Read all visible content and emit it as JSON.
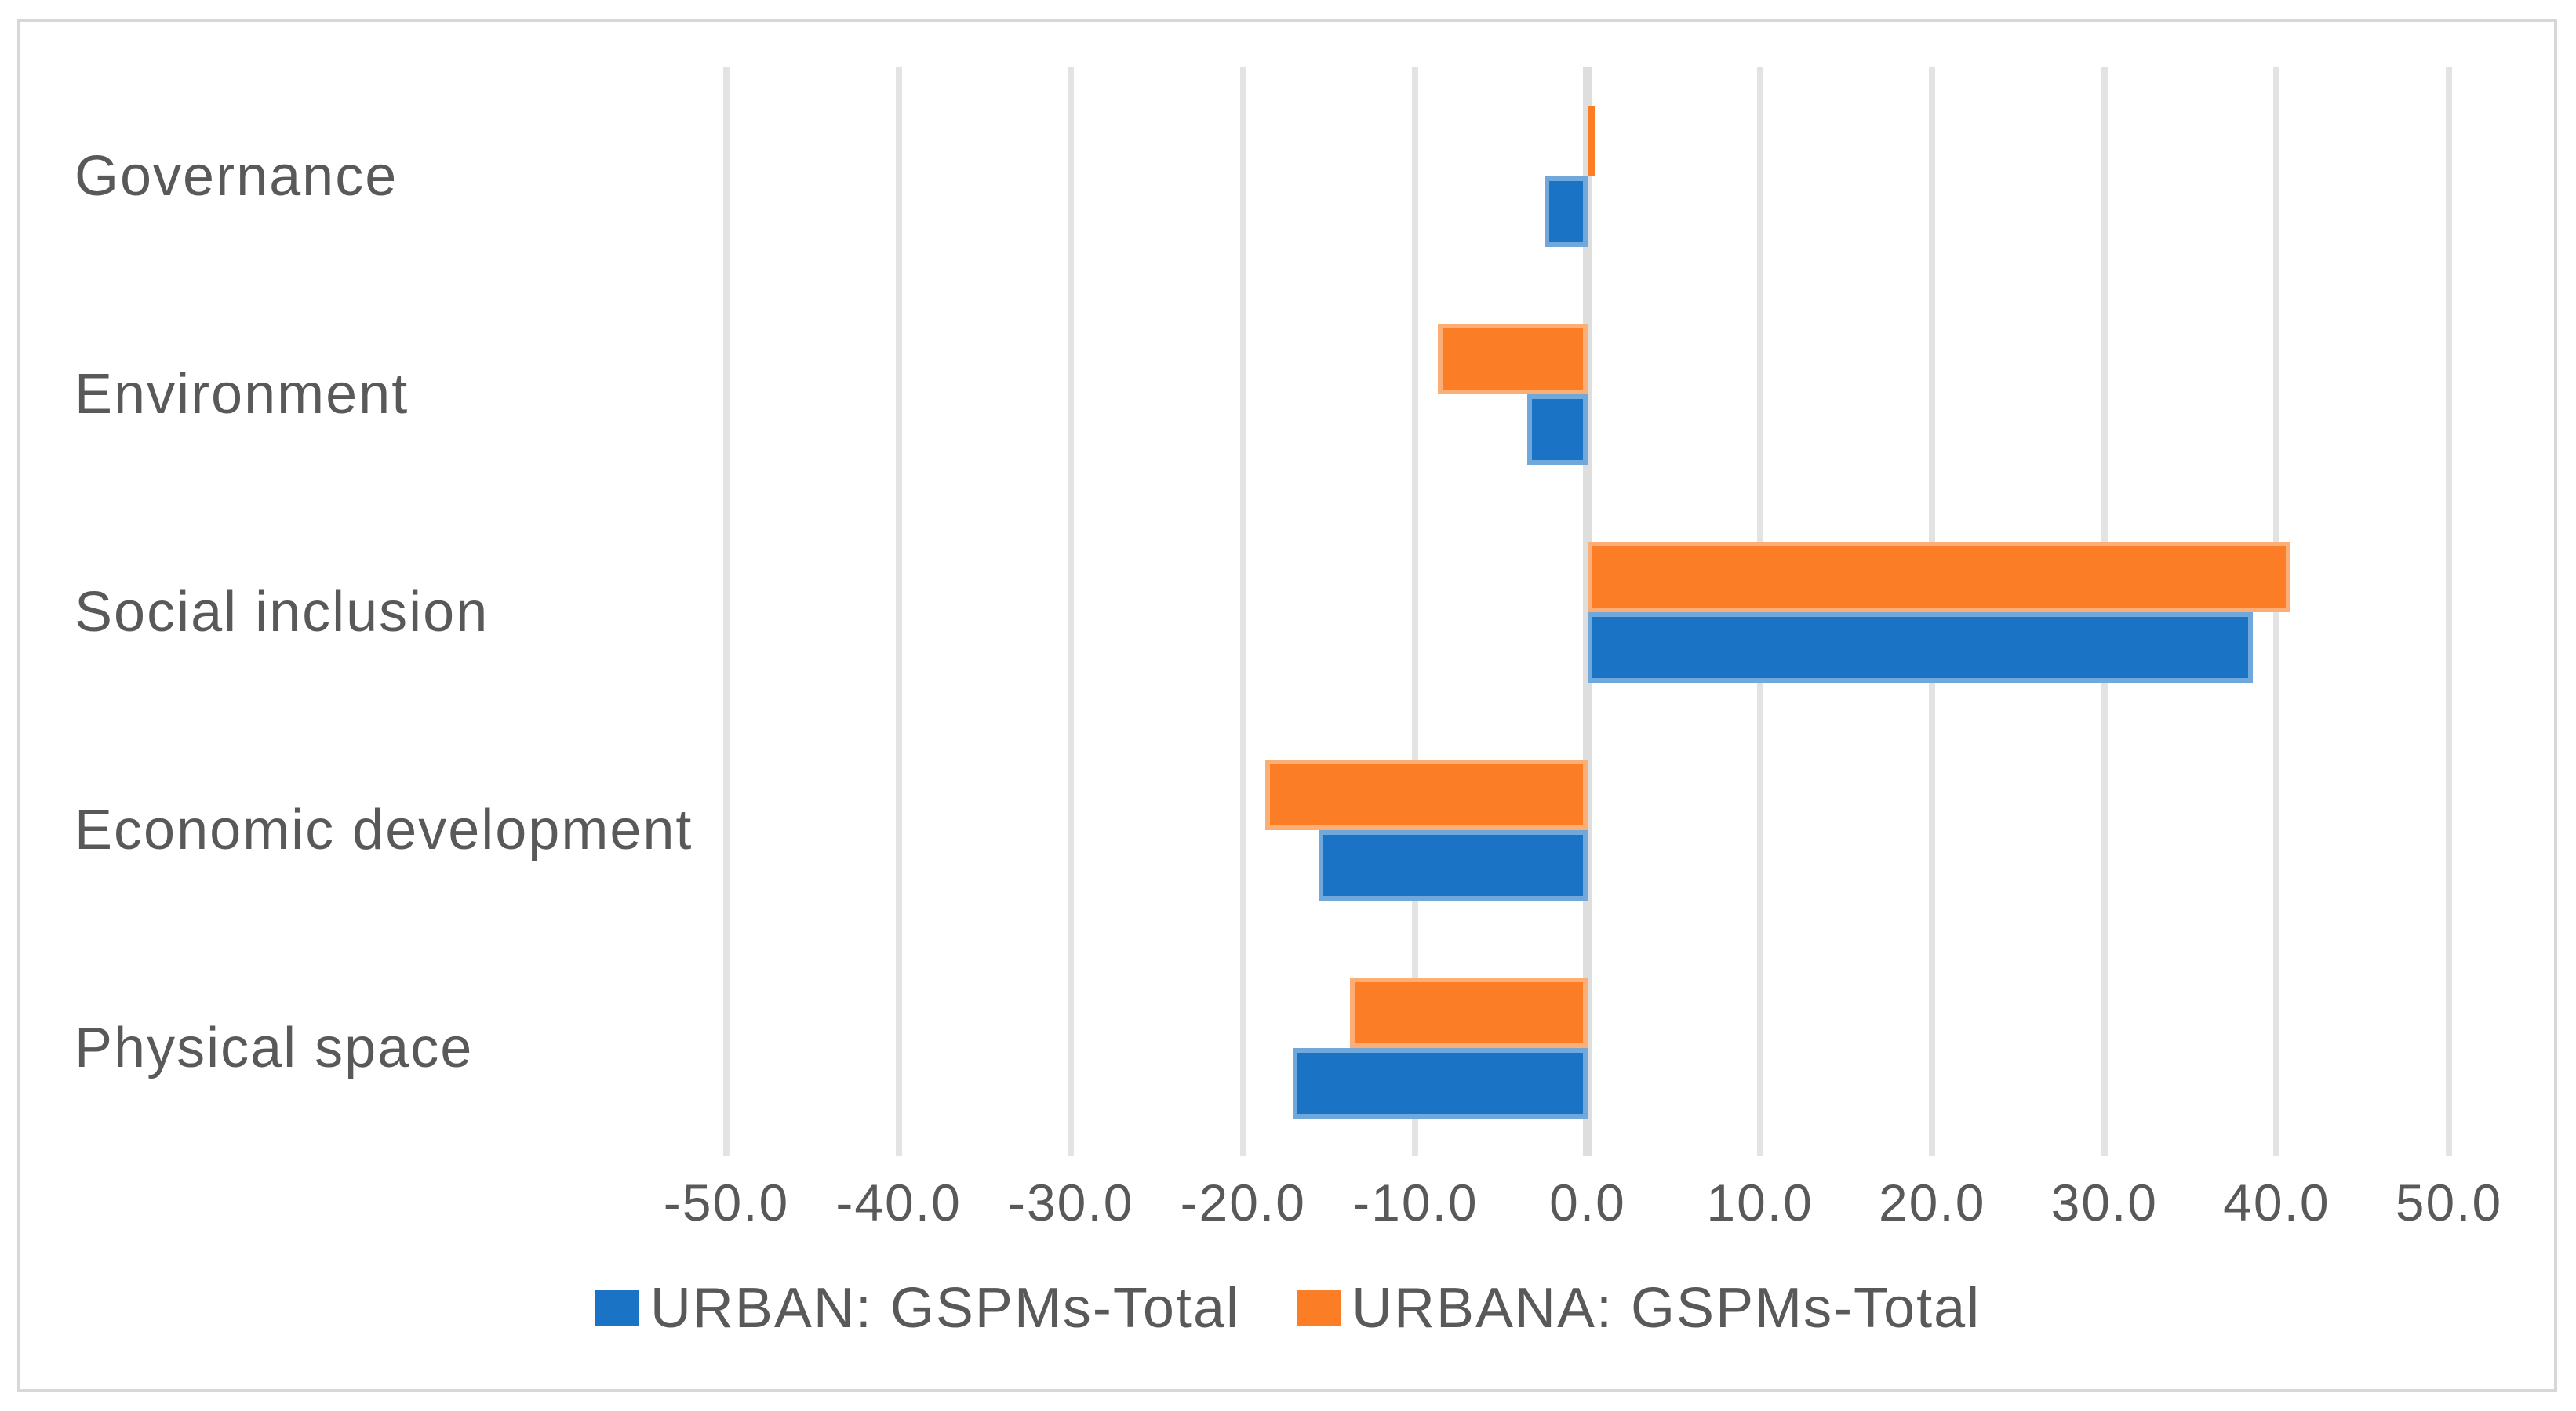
{
  "chart_data": {
    "type": "bar",
    "orientation": "horizontal",
    "title": "",
    "categories": [
      "Governance",
      "Environment",
      "Social inclusion",
      "Economic development",
      "Physical space"
    ],
    "series": [
      {
        "name": "URBAN: GSPMs-Total",
        "color": "#1B73C6",
        "values": [
          -2.5,
          -3.5,
          38.6,
          -15.6,
          -17.1
        ]
      },
      {
        "name": "URBANA: GSPMs-Total",
        "color": "#FB7D25",
        "values": [
          0.4,
          -8.7,
          40.8,
          -18.7,
          -13.8
        ]
      }
    ],
    "x_axis": {
      "min": -50,
      "max": 50,
      "step": 10,
      "tick_labels": [
        "-50.0",
        "-40.0",
        "-30.0",
        "-20.0",
        "-10.0",
        "0.0",
        "10.0",
        "20.0",
        "30.0",
        "40.0",
        "50.0"
      ]
    },
    "legend": {
      "position": "bottom",
      "entries": [
        "URBAN: GSPMs-Total",
        "URBANA: GSPMs-Total"
      ]
    },
    "grid": true
  },
  "styles": {
    "series_blue": "#1B73C6",
    "series_orange": "#FB7D25",
    "grid_color": "#E3E3E3",
    "zero_line_color": "#DEDEDE",
    "text_color": "#595959",
    "frame_border_color": "#D7D7D7",
    "background": "#FFFFFF"
  }
}
